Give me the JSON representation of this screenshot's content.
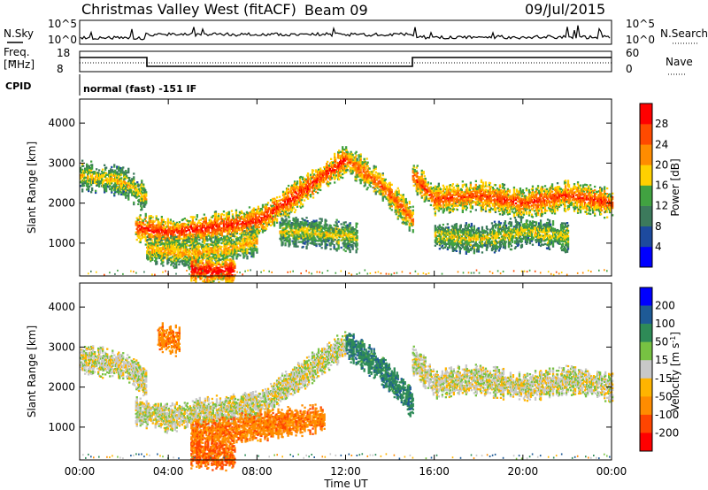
{
  "header": {
    "station": "Christmas Valley West (fitACF)",
    "beam": "Beam 09",
    "date": "09/Jul/2015"
  },
  "top_panels": {
    "nsky_label": "N.Sky",
    "nsearch_label": "N.Search",
    "nsky_ticks": [
      "10^5",
      "10^0"
    ],
    "nsearch_ticks": [
      "10^5",
      "10^0"
    ],
    "freq_label_1": "Freq.",
    "freq_label_2": "[MHz]",
    "freq_ticks": [
      "18",
      "8"
    ],
    "nave_label": "Nave",
    "nave_ticks": [
      "60",
      "0"
    ],
    "cpid_label": "CPID",
    "cpid_value": "normal (fast) -151 IF"
  },
  "colors": {
    "power_scale": [
      "#0000ff",
      "#1d4a9e",
      "#3c7a5c",
      "#41a241",
      "#ffd000",
      "#ff8c00",
      "#ff4a00",
      "#ff0000"
    ],
    "velocity_scale": [
      "#0000ff",
      "#1e5a96",
      "#2e8b57",
      "#77c242",
      "#c8c8c8",
      "#ffb400",
      "#ff8c00",
      "#ff4500",
      "#ff0000"
    ],
    "ground_scatter": "#c8c8c8"
  },
  "chart_data": [
    {
      "type": "heatmap",
      "name": "power",
      "ylabel": "Slant Range [km]",
      "xlabel": "Time UT",
      "x_ticks": [
        "00:00",
        "04:00",
        "08:00",
        "12:00",
        "16:00",
        "20:00",
        "00:00"
      ],
      "y_ticks": [
        "1000",
        "2000",
        "3000",
        "4000"
      ],
      "xlim_hours": [
        0,
        24
      ],
      "ylim_km": [
        180,
        4600
      ],
      "colorbar_label": "Power [dB]",
      "colorbar_ticks": [
        "4",
        "8",
        "12",
        "16",
        "20",
        "24",
        "28"
      ],
      "colorbar_range": [
        0,
        32
      ],
      "echo_bands": [
        {
          "t": [
            0.0,
            2.0,
            3.0
          ],
          "r": [
            2700,
            2550,
            2100
          ],
          "level": 0.55
        },
        {
          "t": [
            2.5,
            4.0,
            6.0,
            8.0,
            10.0,
            12.0
          ],
          "r": [
            1400,
            1250,
            1400,
            1550,
            2300,
            3100
          ],
          "level": 0.85
        },
        {
          "t": [
            12.0,
            13.5,
            15.0
          ],
          "r": [
            3100,
            2500,
            1600
          ],
          "level": 0.75
        },
        {
          "t": [
            15.0,
            16.0,
            18.0,
            20.0,
            22.0,
            24.0
          ],
          "r": [
            2700,
            2100,
            2200,
            2000,
            2200,
            2000
          ],
          "level": 0.8
        },
        {
          "t": [
            3.0,
            5.0,
            7.0,
            8.0
          ],
          "r": [
            850,
            750,
            900,
            1100
          ],
          "level": 0.6
        },
        {
          "t": [
            5.0,
            6.0,
            7.0
          ],
          "r": [
            350,
            300,
            320
          ],
          "level": 0.95
        },
        {
          "t": [
            16.0,
            18.0,
            20.0,
            22.0
          ],
          "r": [
            1200,
            1100,
            1300,
            1150
          ],
          "level": 0.5
        },
        {
          "t": [
            9.0,
            11.0,
            12.5
          ],
          "r": [
            1300,
            1250,
            1150
          ],
          "level": 0.5
        }
      ]
    },
    {
      "type": "heatmap",
      "name": "velocity",
      "ylabel": "Slant Range [km]",
      "xlabel": "Time UT",
      "x_ticks": [
        "00:00",
        "04:00",
        "08:00",
        "12:00",
        "16:00",
        "20:00",
        "00:00"
      ],
      "y_ticks": [
        "1000",
        "2000",
        "3000",
        "4000"
      ],
      "xlim_hours": [
        0,
        24
      ],
      "ylim_km": [
        180,
        4600
      ],
      "colorbar_label": "Velocity [m s-1]",
      "colorbar_ticks": [
        "200",
        "100",
        "50",
        "15",
        "-15",
        "-50",
        "-100",
        "-200"
      ],
      "colorbar_range": [
        -250,
        250
      ],
      "echo_bands": [
        {
          "t": [
            0.0,
            2.0,
            3.0
          ],
          "r": [
            2700,
            2550,
            2100
          ],
          "vel": 0
        },
        {
          "t": [
            2.5,
            4.0,
            6.0,
            8.0,
            10.0,
            12.0
          ],
          "r": [
            1400,
            1250,
            1400,
            1550,
            2300,
            3100
          ],
          "vel": 0
        },
        {
          "t": [
            12.0,
            13.5,
            15.0
          ],
          "r": [
            3100,
            2500,
            1600
          ],
          "vel": 60
        },
        {
          "t": [
            15.0,
            16.0,
            18.0,
            20.0,
            22.0,
            24.0
          ],
          "r": [
            2700,
            2100,
            2200,
            2000,
            2200,
            2000
          ],
          "vel": 0
        },
        {
          "t": [
            5.0,
            7.0,
            9.0,
            11.0
          ],
          "r": [
            800,
            950,
            1100,
            1250
          ],
          "vel": -60
        },
        {
          "t": [
            5.0,
            6.0,
            7.0
          ],
          "r": [
            350,
            300,
            320
          ],
          "vel": -80
        },
        {
          "t": [
            3.5,
            4.5
          ],
          "r": [
            3250,
            3150
          ],
          "vel": -60
        }
      ]
    }
  ]
}
